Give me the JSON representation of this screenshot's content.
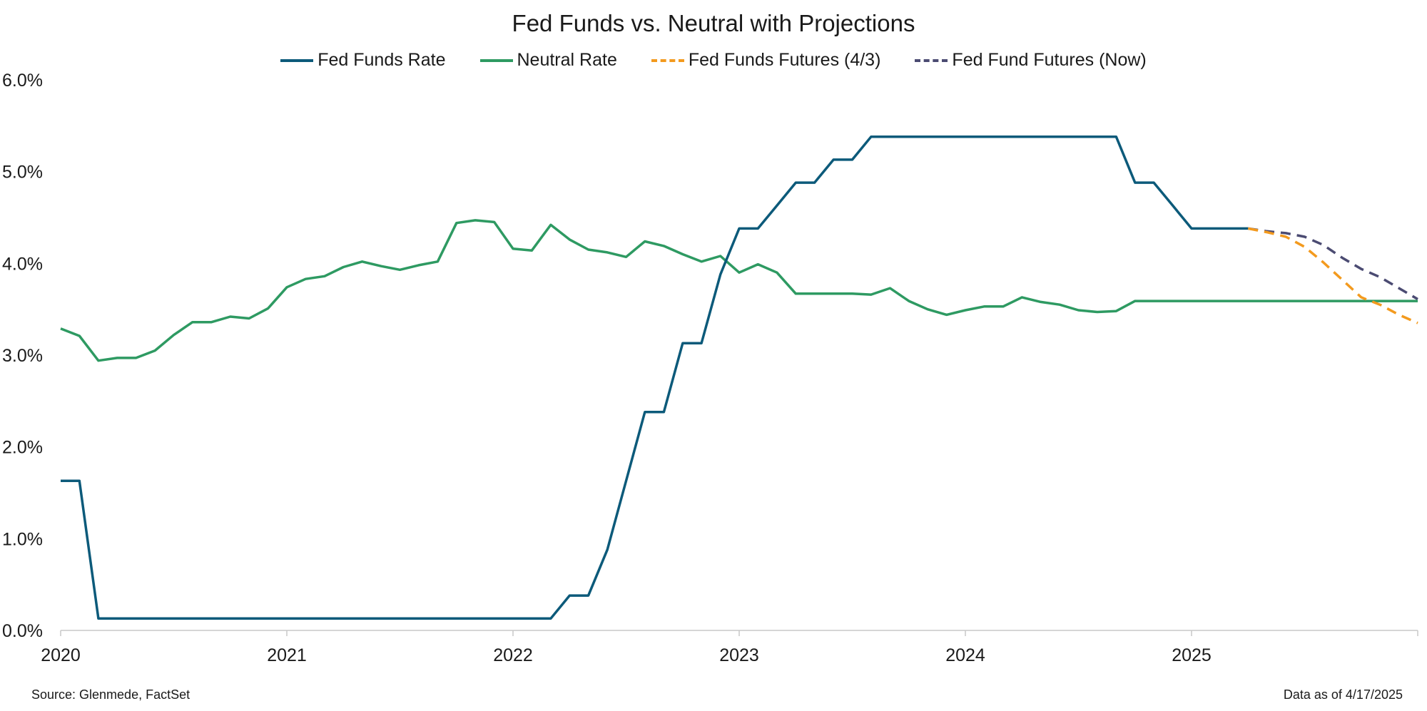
{
  "chart_data": {
    "type": "line",
    "title": "Fed Funds vs. Neutral with Projections",
    "xlabel": "",
    "ylabel": "",
    "xlim": [
      2020.0,
      2026.0
    ],
    "ylim": [
      0,
      6
    ],
    "y_ticks": [
      "0.0%",
      "1.0%",
      "2.0%",
      "3.0%",
      "4.0%",
      "5.0%",
      "6.0%"
    ],
    "x_ticks": [
      "2020",
      "2021",
      "2022",
      "2023",
      "2024",
      "2025"
    ],
    "grid": false,
    "legend_position": "top-center",
    "series": [
      {
        "name": "Fed Funds Rate",
        "color": "#0c5a7a",
        "dash": "solid",
        "x": [
          2020.0,
          2020.083,
          2020.167,
          2020.25,
          2020.333,
          2020.417,
          2020.5,
          2020.583,
          2020.667,
          2020.75,
          2020.833,
          2020.917,
          2021.0,
          2021.083,
          2021.167,
          2021.25,
          2021.333,
          2021.417,
          2021.5,
          2021.583,
          2021.667,
          2021.75,
          2021.833,
          2021.917,
          2022.0,
          2022.083,
          2022.167,
          2022.25,
          2022.333,
          2022.417,
          2022.5,
          2022.583,
          2022.667,
          2022.75,
          2022.833,
          2022.917,
          2023.0,
          2023.083,
          2023.167,
          2023.25,
          2023.333,
          2023.417,
          2023.5,
          2023.583,
          2023.667,
          2023.75,
          2023.833,
          2023.917,
          2024.0,
          2024.083,
          2024.167,
          2024.25,
          2024.333,
          2024.417,
          2024.5,
          2024.583,
          2024.667,
          2024.75,
          2024.833,
          2024.917,
          2025.0,
          2025.083,
          2025.167,
          2025.25
        ],
        "values": [
          1.63,
          1.63,
          0.13,
          0.13,
          0.13,
          0.13,
          0.13,
          0.13,
          0.13,
          0.13,
          0.13,
          0.13,
          0.13,
          0.13,
          0.13,
          0.13,
          0.13,
          0.13,
          0.13,
          0.13,
          0.13,
          0.13,
          0.13,
          0.13,
          0.13,
          0.13,
          0.13,
          0.38,
          0.38,
          0.88,
          1.63,
          2.38,
          2.38,
          3.13,
          3.13,
          3.88,
          4.38,
          4.38,
          4.63,
          4.88,
          4.88,
          5.13,
          5.13,
          5.38,
          5.38,
          5.38,
          5.38,
          5.38,
          5.38,
          5.38,
          5.38,
          5.38,
          5.38,
          5.38,
          5.38,
          5.38,
          5.38,
          4.88,
          4.88,
          4.63,
          4.38,
          4.38,
          4.38,
          4.38
        ]
      },
      {
        "name": "Neutral Rate",
        "color": "#2e9a62",
        "dash": "solid",
        "x": [
          2020.0,
          2020.083,
          2020.167,
          2020.25,
          2020.333,
          2020.417,
          2020.5,
          2020.583,
          2020.667,
          2020.75,
          2020.833,
          2020.917,
          2021.0,
          2021.083,
          2021.167,
          2021.25,
          2021.333,
          2021.417,
          2021.5,
          2021.583,
          2021.667,
          2021.75,
          2021.833,
          2021.917,
          2022.0,
          2022.083,
          2022.167,
          2022.25,
          2022.333,
          2022.417,
          2022.5,
          2022.583,
          2022.667,
          2022.75,
          2022.833,
          2022.917,
          2023.0,
          2023.083,
          2023.167,
          2023.25,
          2023.333,
          2023.417,
          2023.5,
          2023.583,
          2023.667,
          2023.75,
          2023.833,
          2023.917,
          2024.0,
          2024.083,
          2024.167,
          2024.25,
          2024.333,
          2024.417,
          2024.5,
          2024.583,
          2024.667,
          2024.75,
          2024.833,
          2024.917,
          2025.0,
          2025.083,
          2025.167,
          2025.25,
          2025.333,
          2025.417,
          2025.5,
          2025.583,
          2025.667,
          2025.75,
          2025.833,
          2025.917,
          2026.0
        ],
        "values": [
          3.29,
          3.21,
          2.94,
          2.97,
          2.97,
          3.05,
          3.22,
          3.36,
          3.36,
          3.42,
          3.4,
          3.51,
          3.74,
          3.83,
          3.86,
          3.96,
          4.02,
          3.97,
          3.93,
          3.98,
          4.02,
          4.44,
          4.47,
          4.45,
          4.16,
          4.14,
          4.42,
          4.26,
          4.15,
          4.12,
          4.07,
          4.24,
          4.19,
          4.1,
          4.02,
          4.08,
          3.9,
          3.99,
          3.9,
          3.67,
          3.67,
          3.67,
          3.67,
          3.66,
          3.73,
          3.59,
          3.5,
          3.44,
          3.49,
          3.53,
          3.53,
          3.63,
          3.58,
          3.55,
          3.49,
          3.47,
          3.48,
          3.59,
          3.59,
          3.59,
          3.59,
          3.59,
          3.59,
          3.59,
          3.59,
          3.59,
          3.59,
          3.59,
          3.59,
          3.59,
          3.59,
          3.59,
          3.59
        ]
      },
      {
        "name": "Fed Funds Futures (4/3)",
        "color": "#f39a1e",
        "dash": "dashed",
        "x": [
          2025.25,
          2025.333,
          2025.417,
          2025.5,
          2025.583,
          2025.667,
          2025.75,
          2025.833,
          2025.917,
          2026.0
        ],
        "values": [
          4.38,
          4.34,
          4.29,
          4.18,
          4.01,
          3.82,
          3.63,
          3.55,
          3.44,
          3.35
        ]
      },
      {
        "name": "Fed Fund Futures (Now)",
        "color": "#4b4b72",
        "dash": "dashed",
        "x": [
          2025.25,
          2025.333,
          2025.417,
          2025.5,
          2025.583,
          2025.667,
          2025.75,
          2025.833,
          2025.917,
          2026.0
        ],
        "values": [
          4.38,
          4.35,
          4.33,
          4.29,
          4.2,
          4.06,
          3.94,
          3.85,
          3.73,
          3.61
        ]
      }
    ]
  },
  "footer": {
    "source": "Source: Glenmede, FactSet",
    "as_of": "Data as of 4/17/2025"
  }
}
